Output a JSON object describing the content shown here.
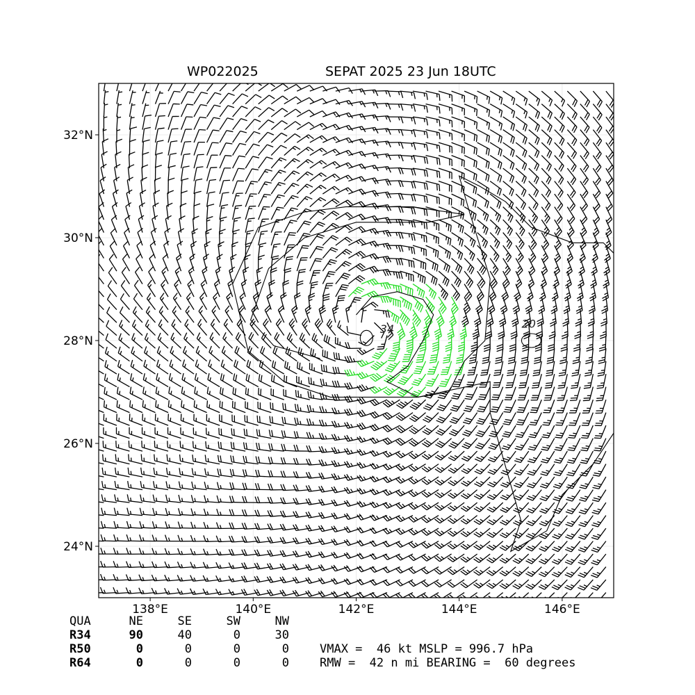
{
  "header": {
    "storm_id": "WP022025",
    "storm_info": "SEPAT 2025 23 Jun 18UTC"
  },
  "chart_data": {
    "type": "wind-barb-map",
    "lon_range": [
      137.0,
      147.0
    ],
    "lat_range": [
      23.0,
      33.0
    ],
    "lon_ticks": [
      138,
      140,
      142,
      144,
      146
    ],
    "lat_ticks": [
      24,
      26,
      28,
      30,
      32
    ],
    "lon_tick_labels": [
      "138°E",
      "140°E",
      "142°E",
      "144°E",
      "146°E"
    ],
    "lat_tick_labels": [
      "24°N",
      "26°N",
      "28°N",
      "30°N",
      "32°N"
    ],
    "grid": true,
    "center": {
      "lon": 142.2,
      "lat": 28.2
    },
    "vmax_kt": 46,
    "rmw_nmi": 42,
    "bearing_deg": 60,
    "contour_levels": [
      {
        "value": 20,
        "label": "20",
        "label_lon": 145.35,
        "label_lat": 28.25
      },
      {
        "value": 34,
        "label": "34",
        "label_lon": 142.6,
        "label_lat": 28.15
      }
    ],
    "barb_colors": {
      "below_34": "#000000",
      "34_to_50": "#22dd22",
      "50_to_64": "#f0a500"
    },
    "calm_points_note": "small circles near 138E 24-25N"
  },
  "table": {
    "headers": [
      "QUA",
      "NE",
      "SE",
      "SW",
      "NW"
    ],
    "rows": [
      {
        "label": "R34",
        "values": [
          "90",
          "40",
          "0",
          "30"
        ]
      },
      {
        "label": "R50",
        "values": [
          "0",
          "0",
          "0",
          "0"
        ]
      },
      {
        "label": "R64",
        "values": [
          "0",
          "0",
          "0",
          "0"
        ]
      }
    ]
  },
  "summary": {
    "line1": "VMAX =  46 kt MSLP = 996.7 hPa",
    "line2": "RMW =  42 n mi BEARING =  60 degrees"
  }
}
